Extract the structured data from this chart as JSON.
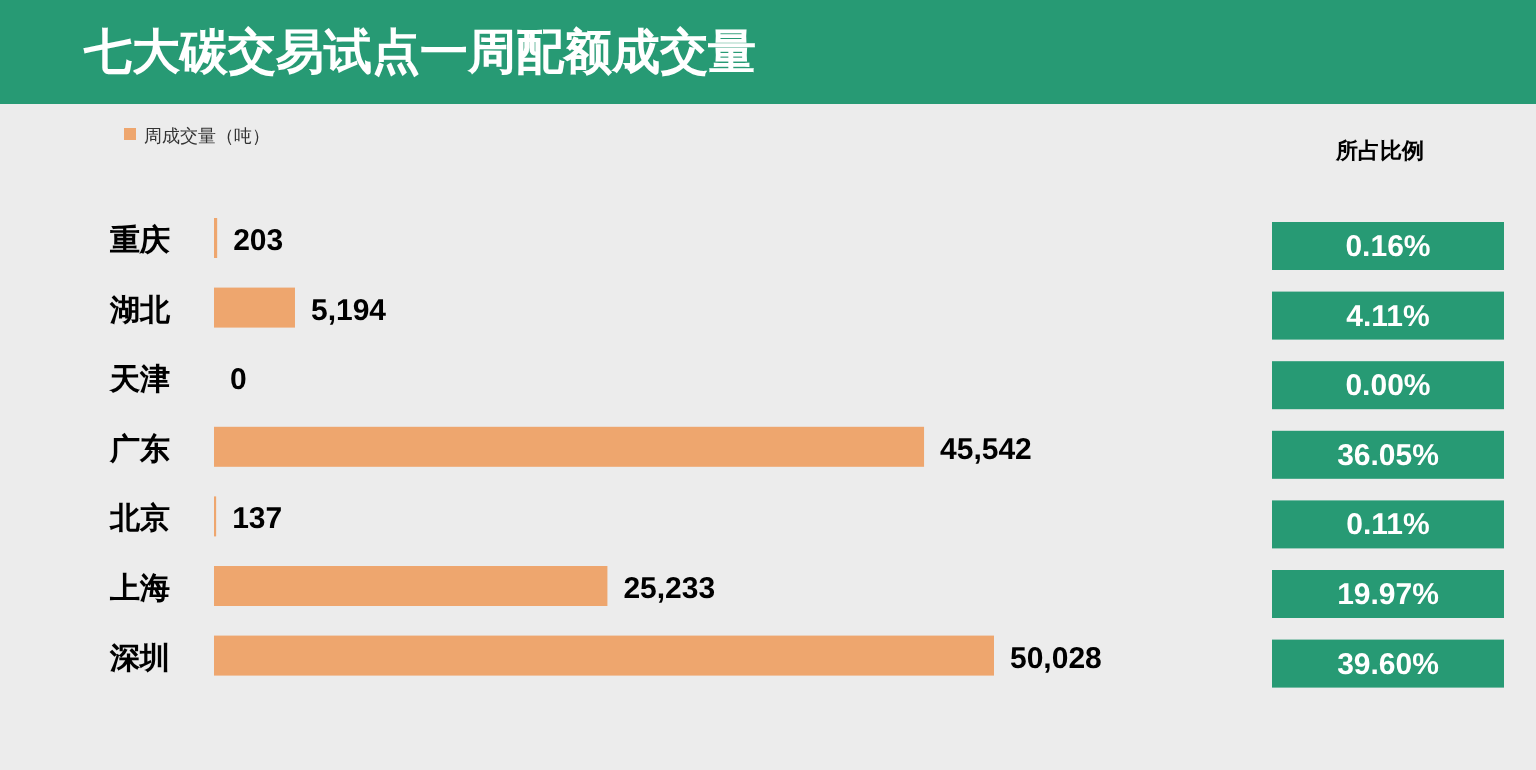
{
  "chart_data": [
    {
      "type": "bar",
      "orientation": "horizontal",
      "title": "七大碳交易试点一周配额成交量",
      "categories": [
        "重庆",
        "湖北",
        "天津",
        "广东",
        "北京",
        "上海",
        "深圳"
      ],
      "series": [
        {
          "name": "周成交量（吨）",
          "color": "#eea66e",
          "values": [
            203,
            5194,
            0,
            45542,
            137,
            25233,
            50028
          ],
          "value_labels": [
            "203",
            "5,194",
            "0",
            "45,542",
            "137",
            "25,233",
            "50,028"
          ]
        }
      ],
      "legend": "top left"
    },
    {
      "type": "other",
      "title": "所占比例",
      "annotations": [
        "0.16%",
        "4.11%",
        "0.00%",
        "36.05%",
        "0.11%",
        "19.97%",
        "39.60%"
      ]
    }
  ]
}
